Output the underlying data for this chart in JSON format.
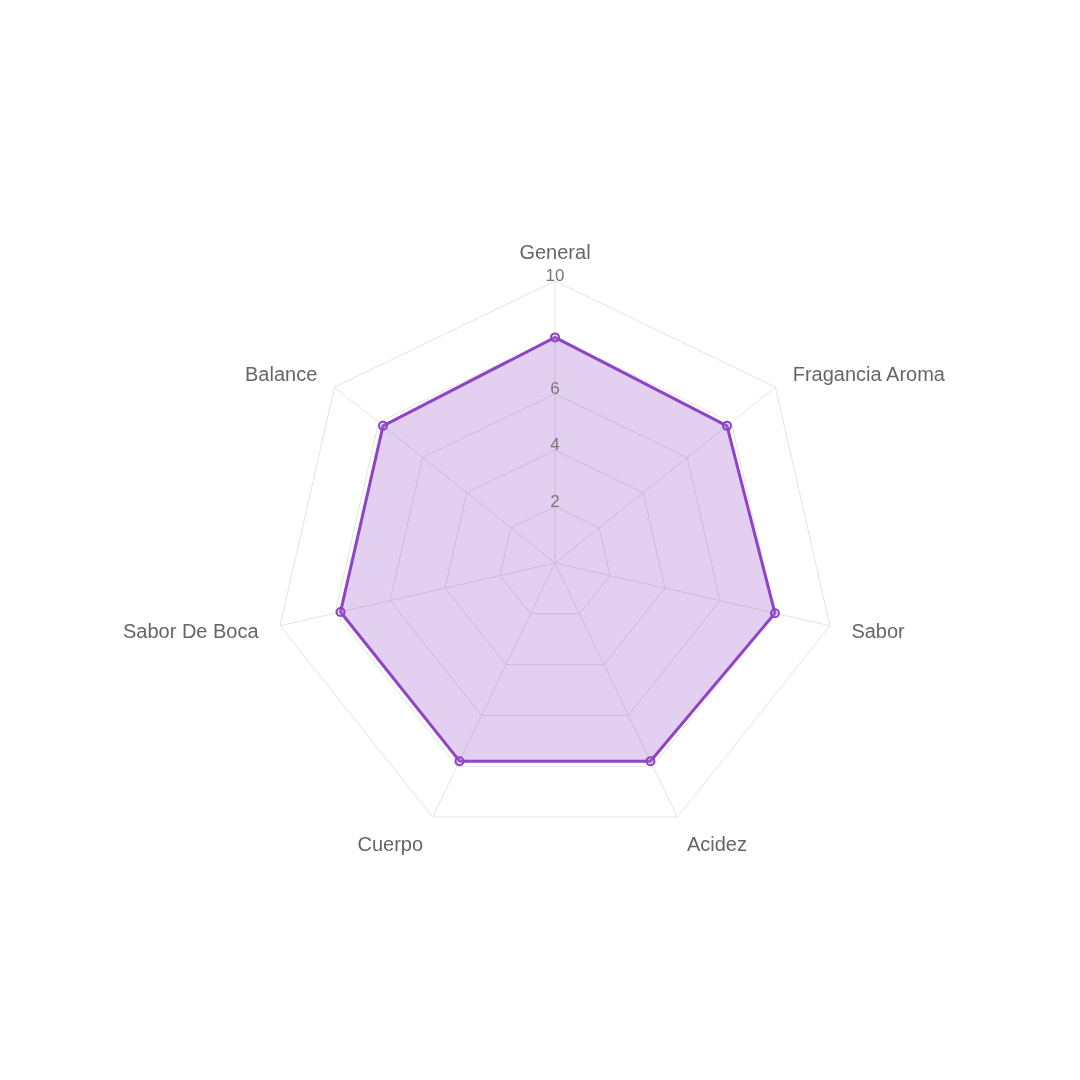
{
  "chart_data": {
    "type": "radar",
    "categories": [
      "General",
      "Fragancia Aroma",
      "Sabor",
      "Acidez",
      "Cuerpo",
      "Sabor De Boca",
      "Balance"
    ],
    "series": [
      {
        "color": "#8e44c4",
        "values": [
          8,
          7.8,
          8,
          7.8,
          7.8,
          7.8,
          7.8
        ]
      }
    ],
    "ylim": [
      0,
      10
    ],
    "yticks": [
      2,
      4,
      6,
      10
    ],
    "grid": true,
    "marker": "circle"
  }
}
